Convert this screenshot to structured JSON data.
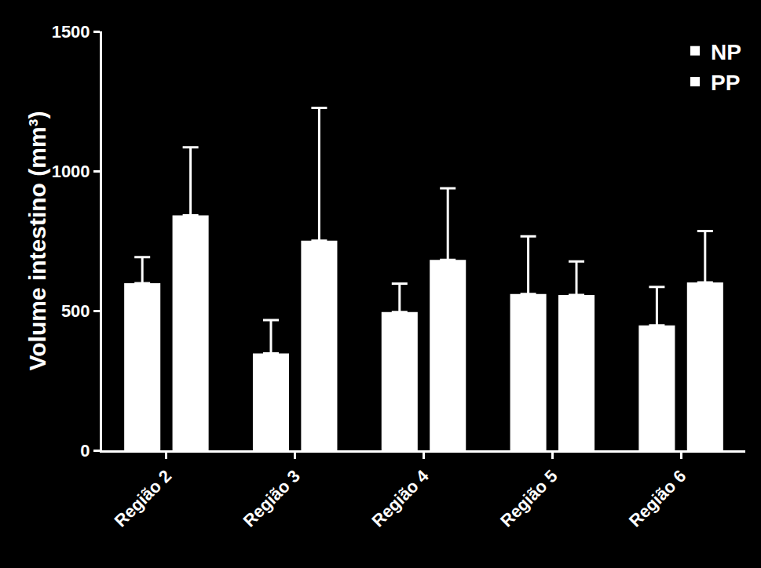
{
  "chart_data": {
    "type": "bar",
    "y_label": "Volume intestino (mm³)",
    "categories": [
      "Região 2",
      "Região 3",
      "Região 4",
      "Região 5",
      "Região 6"
    ],
    "series": [
      {
        "name": "NP",
        "color": "#ffffff",
        "values": [
          598,
          347,
          495,
          560,
          447
        ],
        "errors": [
          94,
          119,
          102,
          206,
          138
        ]
      },
      {
        "name": "PP",
        "color": "#ffffff",
        "values": [
          841,
          751,
          682,
          556,
          601
        ],
        "errors": [
          244,
          475,
          256,
          120,
          184
        ]
      }
    ],
    "ylim": [
      0,
      1500
    ],
    "yticks": [
      0,
      500,
      1000,
      1500
    ],
    "grid": false,
    "legend": "top-right"
  }
}
